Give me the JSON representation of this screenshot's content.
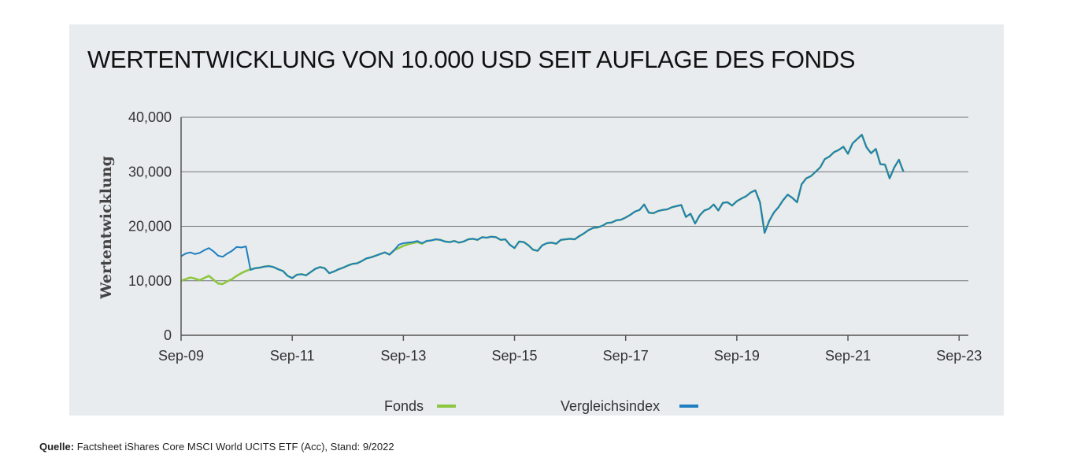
{
  "source": {
    "label": "Quelle:",
    "text": "Factsheet iShares Core MSCI World UCITS ETF (Acc), Stand: 9/2022"
  },
  "colors": {
    "fonds": "#8dc63f",
    "index": "#1f7fc0",
    "background": "#e9ecef"
  },
  "chart_data": {
    "type": "line",
    "title": "WERTENTWICKLUNG VON 10.000 USD SEIT AUFLAGE DES FONDS",
    "ylabel": "Wertentwicklung",
    "xlabel": "",
    "x_tick_labels": [
      "Sep-09",
      "Sep-11",
      "Sep-13",
      "Sep-15",
      "Sep-17",
      "Sep-19",
      "Sep-21",
      "Sep-23"
    ],
    "y_tick_labels": [
      "0",
      "10,000",
      "20,000",
      "30,000",
      "40,000"
    ],
    "xlim": [
      "2009-09",
      "2023-11"
    ],
    "ylim": [
      0,
      40000
    ],
    "grid": "horizontal",
    "legend_position": "bottom",
    "series": [
      {
        "name": "Fonds",
        "x": [
          "2009-09",
          "2009-10",
          "2009-11",
          "2009-12",
          "2010-01",
          "2010-02",
          "2010-03",
          "2010-04",
          "2010-05",
          "2010-06",
          "2010-07",
          "2010-08",
          "2010-09",
          "2010-10",
          "2010-11",
          "2010-12",
          "2011-01",
          "2011-02",
          "2011-03",
          "2011-04",
          "2011-05",
          "2011-06",
          "2011-07",
          "2011-08",
          "2011-09",
          "2011-10",
          "2011-11",
          "2011-12",
          "2012-01",
          "2012-02",
          "2012-03",
          "2012-04",
          "2012-05",
          "2012-06",
          "2012-07",
          "2012-08",
          "2012-09",
          "2012-10",
          "2012-11",
          "2012-12",
          "2013-01",
          "2013-02",
          "2013-03",
          "2013-04",
          "2013-05",
          "2013-06",
          "2013-07",
          "2013-08",
          "2013-09",
          "2013-10",
          "2013-11",
          "2013-12",
          "2014-01",
          "2014-02",
          "2014-03",
          "2014-04",
          "2014-05",
          "2014-06",
          "2014-07",
          "2014-08",
          "2014-09",
          "2014-10",
          "2014-11",
          "2014-12",
          "2015-01",
          "2015-02",
          "2015-03",
          "2015-04",
          "2015-05",
          "2015-06",
          "2015-07",
          "2015-08",
          "2015-09",
          "2015-10",
          "2015-11",
          "2015-12",
          "2016-01",
          "2016-02",
          "2016-03",
          "2016-04",
          "2016-05",
          "2016-06",
          "2016-07",
          "2016-08",
          "2016-09",
          "2016-10",
          "2016-11",
          "2016-12",
          "2017-01",
          "2017-02",
          "2017-03",
          "2017-04",
          "2017-05",
          "2017-06",
          "2017-07",
          "2017-08",
          "2017-09",
          "2017-10",
          "2017-11",
          "2017-12",
          "2018-01",
          "2018-02",
          "2018-03",
          "2018-04",
          "2018-05",
          "2018-06",
          "2018-07",
          "2018-08",
          "2018-09",
          "2018-10",
          "2018-11",
          "2018-12",
          "2019-01",
          "2019-02",
          "2019-03",
          "2019-04",
          "2019-05",
          "2019-06",
          "2019-07",
          "2019-08",
          "2019-09",
          "2019-10",
          "2019-11",
          "2019-12",
          "2020-01",
          "2020-02",
          "2020-03",
          "2020-04",
          "2020-05",
          "2020-06",
          "2020-07",
          "2020-08",
          "2020-09",
          "2020-10",
          "2020-11",
          "2020-12",
          "2021-01",
          "2021-02",
          "2021-03",
          "2021-04",
          "2021-05",
          "2021-06",
          "2021-07",
          "2021-08",
          "2021-09",
          "2021-10",
          "2021-11",
          "2021-12",
          "2022-01",
          "2022-02",
          "2022-03",
          "2022-04",
          "2022-05",
          "2022-06",
          "2022-07",
          "2022-08",
          "2022-09"
        ],
        "values": [
          10000,
          10300,
          10600,
          10400,
          10100,
          10500,
          10900,
          10200,
          9500,
          9400,
          9900,
          10300,
          10900,
          11400,
          11800,
          12100,
          12300,
          12400,
          12600,
          12700,
          12500,
          12100,
          11800,
          10900,
          10500,
          11100,
          11200,
          11000,
          11600,
          12200,
          12500,
          12300,
          11400,
          11700,
          12100,
          12400,
          12800,
          13100,
          13200,
          13600,
          14100,
          14300,
          14600,
          14900,
          15200,
          14800,
          15600,
          16000,
          16400,
          16700,
          16900,
          17100,
          16800,
          17300,
          17400,
          17600,
          17500,
          17200,
          17100,
          17300,
          17000,
          17200,
          17600,
          17700,
          17500,
          18000,
          17900,
          18100,
          18000,
          17500,
          17600,
          16600,
          16000,
          17200,
          17100,
          16500,
          15700,
          15500,
          16500,
          16900,
          17000,
          16800,
          17500,
          17600,
          17700,
          17600,
          18200,
          18700,
          19300,
          19700,
          19800,
          20100,
          20600,
          20700,
          21100,
          21200,
          21600,
          22100,
          22700,
          23000,
          24000,
          22500,
          22400,
          22800,
          23000,
          23100,
          23500,
          23700,
          23900,
          21700,
          22300,
          20500,
          22000,
          22900,
          23200,
          24000,
          22900,
          24300,
          24400,
          23800,
          24600,
          25100,
          25500,
          26200,
          26600,
          24400,
          18800,
          21000,
          22500,
          23500,
          24800,
          25800,
          25200,
          24400,
          27700,
          28800,
          29200,
          30000,
          30800,
          32300,
          32800,
          33600,
          34000,
          34600,
          33300,
          35200,
          36000,
          36800,
          34500,
          33400,
          34200,
          31400,
          31300,
          28800,
          30800,
          32200,
          30000
        ]
      },
      {
        "name": "Vergleichsindex",
        "x": [
          "2009-09",
          "2009-10",
          "2009-11",
          "2009-12",
          "2010-01",
          "2010-02",
          "2010-03",
          "2010-04",
          "2010-05",
          "2010-06",
          "2010-07",
          "2010-08",
          "2010-09",
          "2010-10",
          "2010-11",
          "2010-12",
          "2011-01",
          "2011-02",
          "2011-03",
          "2011-04",
          "2011-05",
          "2011-06",
          "2011-07",
          "2011-08",
          "2011-09",
          "2011-10",
          "2011-11",
          "2011-12",
          "2012-01",
          "2012-02",
          "2012-03",
          "2012-04",
          "2012-05",
          "2012-06",
          "2012-07",
          "2012-08",
          "2012-09",
          "2012-10",
          "2012-11",
          "2012-12",
          "2013-01",
          "2013-02",
          "2013-03",
          "2013-04",
          "2013-05",
          "2013-06",
          "2013-07",
          "2013-08",
          "2013-09",
          "2013-10",
          "2013-11",
          "2013-12",
          "2014-01",
          "2014-02",
          "2014-03",
          "2014-04",
          "2014-05",
          "2014-06",
          "2014-07",
          "2014-08",
          "2014-09",
          "2014-10",
          "2014-11",
          "2014-12",
          "2015-01",
          "2015-02",
          "2015-03",
          "2015-04",
          "2015-05",
          "2015-06",
          "2015-07",
          "2015-08",
          "2015-09",
          "2015-10",
          "2015-11",
          "2015-12",
          "2016-01",
          "2016-02",
          "2016-03",
          "2016-04",
          "2016-05",
          "2016-06",
          "2016-07",
          "2016-08",
          "2016-09",
          "2016-10",
          "2016-11",
          "2016-12",
          "2017-01",
          "2017-02",
          "2017-03",
          "2017-04",
          "2017-05",
          "2017-06",
          "2017-07",
          "2017-08",
          "2017-09",
          "2017-10",
          "2017-11",
          "2017-12",
          "2018-01",
          "2018-02",
          "2018-03",
          "2018-04",
          "2018-05",
          "2018-06",
          "2018-07",
          "2018-08",
          "2018-09",
          "2018-10",
          "2018-11",
          "2018-12",
          "2019-01",
          "2019-02",
          "2019-03",
          "2019-04",
          "2019-05",
          "2019-06",
          "2019-07",
          "2019-08",
          "2019-09",
          "2019-10",
          "2019-11",
          "2019-12",
          "2020-01",
          "2020-02",
          "2020-03",
          "2020-04",
          "2020-05",
          "2020-06",
          "2020-07",
          "2020-08",
          "2020-09",
          "2020-10",
          "2020-11",
          "2020-12",
          "2021-01",
          "2021-02",
          "2021-03",
          "2021-04",
          "2021-05",
          "2021-06",
          "2021-07",
          "2021-08",
          "2021-09",
          "2021-10",
          "2021-11",
          "2021-12",
          "2022-01",
          "2022-02",
          "2022-03",
          "2022-04",
          "2022-05",
          "2022-06",
          "2022-07",
          "2022-08",
          "2022-09"
        ],
        "values": [
          14500,
          15000,
          15200,
          14900,
          15100,
          15600,
          16000,
          15400,
          14600,
          14400,
          15000,
          15500,
          16200,
          16100,
          16300,
          12000,
          12300,
          12400,
          12600,
          12700,
          12500,
          12100,
          11800,
          10900,
          10500,
          11100,
          11200,
          11000,
          11600,
          12200,
          12500,
          12300,
          11400,
          11700,
          12100,
          12400,
          12800,
          13100,
          13200,
          13600,
          14100,
          14300,
          14600,
          14900,
          15200,
          14800,
          15600,
          16600,
          16900,
          17000,
          17100,
          17300,
          16900,
          17300,
          17400,
          17600,
          17500,
          17200,
          17100,
          17300,
          17000,
          17200,
          17600,
          17700,
          17500,
          18000,
          17900,
          18100,
          18000,
          17500,
          17600,
          16600,
          16000,
          17200,
          17100,
          16500,
          15700,
          15500,
          16500,
          16900,
          17000,
          16800,
          17500,
          17600,
          17700,
          17600,
          18200,
          18700,
          19300,
          19700,
          19800,
          20100,
          20600,
          20700,
          21100,
          21200,
          21600,
          22100,
          22700,
          23000,
          24000,
          22500,
          22400,
          22800,
          23000,
          23100,
          23500,
          23700,
          23900,
          21700,
          22300,
          20500,
          22000,
          22900,
          23200,
          24000,
          22900,
          24300,
          24400,
          23800,
          24600,
          25100,
          25500,
          26200,
          26600,
          24400,
          18800,
          21000,
          22500,
          23500,
          24800,
          25800,
          25200,
          24400,
          27700,
          28800,
          29200,
          30000,
          30800,
          32300,
          32800,
          33600,
          34000,
          34600,
          33300,
          35200,
          36000,
          36800,
          34500,
          33400,
          34200,
          31400,
          31300,
          28800,
          30800,
          32200,
          30000
        ]
      }
    ]
  }
}
